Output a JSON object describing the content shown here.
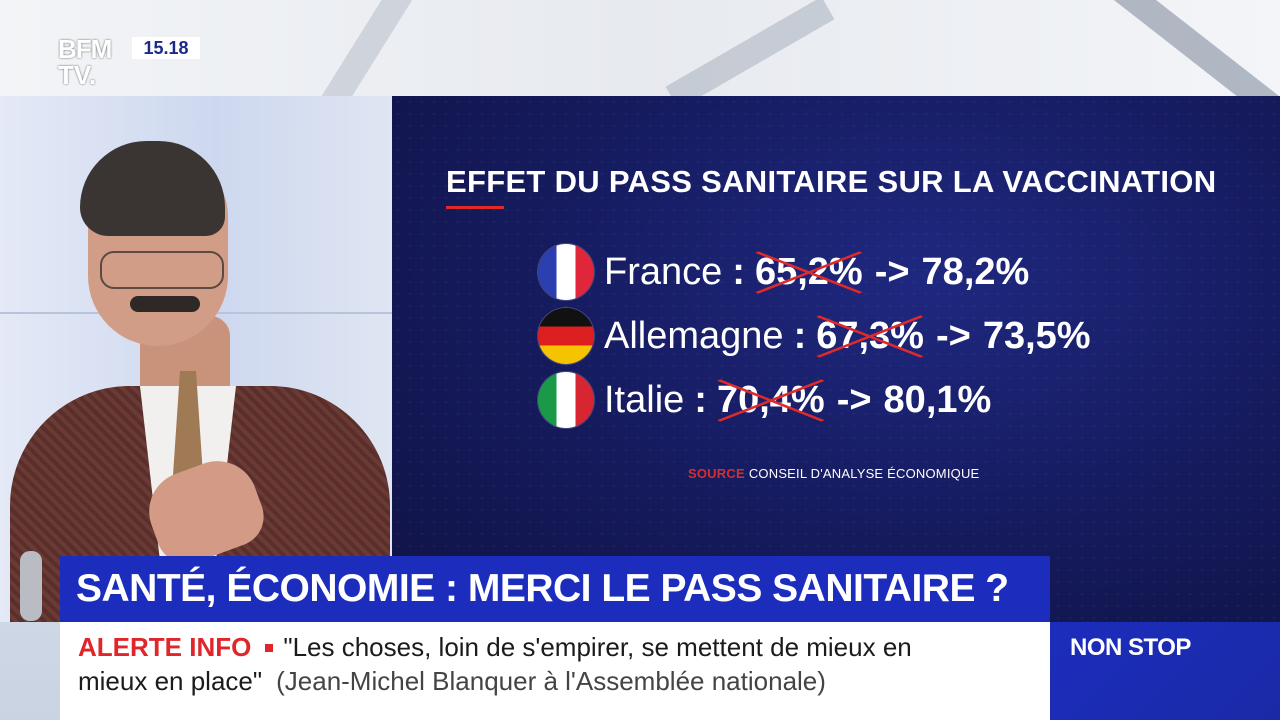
{
  "channel": {
    "logo_line1": "BFM",
    "logo_line2": "TV.",
    "clock": "15.18"
  },
  "graphic": {
    "title": "EFFET DU PASS SANITAIRE SUR LA VACCINATION",
    "rows": [
      {
        "country": "France",
        "separator": ":",
        "old_value": "65,2%",
        "arrow": "->",
        "new_value": "78,2%",
        "flag": "france-flag-icon"
      },
      {
        "country": "Allemagne",
        "separator": ":",
        "old_value": "67,3%",
        "arrow": "->",
        "new_value": "73,5%",
        "flag": "germany-flag-icon"
      },
      {
        "country": "Italie",
        "separator": ":",
        "old_value": "70,4%",
        "arrow": "->",
        "new_value": "80,1%",
        "flag": "italy-flag-icon"
      }
    ],
    "source_label": "SOURCE",
    "source_text": "CONSEIL D'ANALYSE ÉCONOMIQUE",
    "accent_color": "#e02a2a"
  },
  "headline": {
    "text": "SANTÉ, ÉCONOMIE : MERCI LE PASS SANITAIRE ?"
  },
  "ticker": {
    "alert_label": "ALERTE INFO",
    "quote_line1": "\"Les choses, loin de s'empirer, se mettent de mieux en",
    "quote_line2": "mieux en place\"",
    "attribution": "(Jean-Michel Blanquer à l'Assemblée nationale)"
  },
  "nonstop": {
    "label": "NON STOP"
  },
  "colors": {
    "brand_blue": "#1c2dbd",
    "alert_red": "#e0262a",
    "graphic_bg": "#151a5c"
  }
}
